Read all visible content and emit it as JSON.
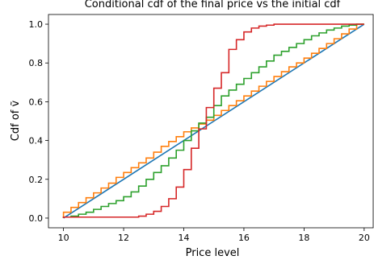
{
  "chart_data": {
    "type": "line",
    "title": "Conditional cdf of the final price vs the initial cdf",
    "xlabel": "Price level",
    "ylabel": "Cdf of ṽ",
    "xlim": [
      9.5,
      20.3
    ],
    "ylim": [
      -0.05,
      1.05
    ],
    "xticks": [
      10,
      12,
      14,
      16,
      18,
      20
    ],
    "yticks": [
      0.0,
      0.2,
      0.4,
      0.6,
      0.8,
      1.0
    ],
    "xtick_labels": [
      "10",
      "12",
      "14",
      "16",
      "18",
      "20"
    ],
    "ytick_labels": [
      "0.0",
      "0.2",
      "0.4",
      "0.6",
      "0.8",
      "1.0"
    ],
    "grid": false,
    "legend": "none",
    "series": [
      {
        "style": "line",
        "color": "#1f77b4",
        "x": [
          10,
          20
        ],
        "y": [
          0.0,
          1.0
        ]
      },
      {
        "style": "step",
        "color": "#ff7f0e",
        "x": [
          10.0,
          10.25,
          10.5,
          10.75,
          11.0,
          11.25,
          11.5,
          11.75,
          12.0,
          12.25,
          12.5,
          12.75,
          13.0,
          13.25,
          13.5,
          13.75,
          14.0,
          14.25,
          14.5,
          14.75,
          15.0,
          15.25,
          15.5,
          15.75,
          16.0,
          16.25,
          16.5,
          16.75,
          17.0,
          17.25,
          17.5,
          17.75,
          18.0,
          18.25,
          18.5,
          18.75,
          19.0,
          19.25,
          19.5,
          19.75,
          20.0
        ],
        "y": [
          0.0,
          0.03,
          0.055,
          0.08,
          0.105,
          0.13,
          0.155,
          0.18,
          0.21,
          0.235,
          0.26,
          0.285,
          0.31,
          0.34,
          0.37,
          0.395,
          0.42,
          0.445,
          0.465,
          0.485,
          0.505,
          0.53,
          0.555,
          0.58,
          0.605,
          0.63,
          0.655,
          0.68,
          0.705,
          0.73,
          0.755,
          0.78,
          0.8,
          0.825,
          0.85,
          0.875,
          0.9,
          0.925,
          0.95,
          0.975,
          1.0
        ]
      },
      {
        "style": "step",
        "color": "#2ca02c",
        "x": [
          10.0,
          10.25,
          10.5,
          10.75,
          11.0,
          11.25,
          11.5,
          11.75,
          12.0,
          12.25,
          12.5,
          12.75,
          13.0,
          13.25,
          13.5,
          13.75,
          14.0,
          14.25,
          14.5,
          14.75,
          15.0,
          15.25,
          15.5,
          15.75,
          16.0,
          16.25,
          16.5,
          16.75,
          17.0,
          17.25,
          17.5,
          17.75,
          18.0,
          18.25,
          18.5,
          18.75,
          19.0,
          19.25,
          19.5,
          19.75,
          20.0
        ],
        "y": [
          0.0,
          0.005,
          0.01,
          0.02,
          0.03,
          0.045,
          0.06,
          0.075,
          0.09,
          0.11,
          0.135,
          0.165,
          0.2,
          0.235,
          0.27,
          0.31,
          0.35,
          0.4,
          0.45,
          0.49,
          0.52,
          0.58,
          0.63,
          0.66,
          0.69,
          0.72,
          0.75,
          0.78,
          0.81,
          0.84,
          0.86,
          0.88,
          0.9,
          0.92,
          0.94,
          0.955,
          0.97,
          0.98,
          0.99,
          0.995,
          1.0
        ]
      },
      {
        "style": "step",
        "color": "#d62728",
        "x": [
          10.0,
          12.5,
          12.75,
          13.0,
          13.25,
          13.5,
          13.75,
          14.0,
          14.25,
          14.5,
          14.75,
          15.0,
          15.25,
          15.5,
          15.75,
          16.0,
          16.25,
          16.5,
          16.75,
          17.0,
          17.25,
          17.5,
          20.0
        ],
        "y": [
          0.0,
          0.005,
          0.01,
          0.02,
          0.035,
          0.06,
          0.1,
          0.16,
          0.25,
          0.36,
          0.46,
          0.57,
          0.67,
          0.75,
          0.87,
          0.92,
          0.96,
          0.98,
          0.99,
          0.995,
          1.0,
          1.0,
          1.0
        ]
      }
    ]
  }
}
